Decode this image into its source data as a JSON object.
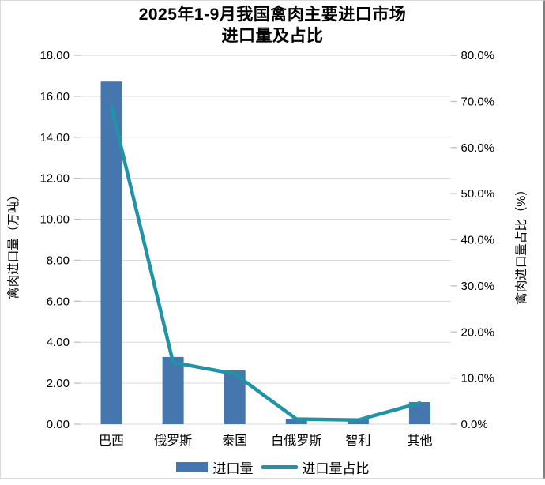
{
  "header": {
    "title_line1": "2025年1-9月我国禽肉主要进口市场",
    "title_line2": "进口量及占比"
  },
  "legend": {
    "items": [
      {
        "label": "进口量",
        "type": "bar"
      },
      {
        "label": "进口量占比",
        "type": "line"
      }
    ]
  },
  "chart_data": {
    "type": "bar+line",
    "title": "2025年1-9月我国禽肉主要进口市场 进口量及占比",
    "categories": [
      "巴西",
      "俄罗斯",
      "泰国",
      "白俄罗斯",
      "智利",
      "其他"
    ],
    "series": [
      {
        "name": "进口量",
        "type": "bar",
        "axis": "left",
        "values": [
          16.72,
          3.28,
          2.62,
          0.27,
          0.25,
          1.08
        ],
        "color": "#4576AD"
      },
      {
        "name": "进口量占比",
        "type": "line",
        "axis": "right",
        "values": [
          68.9,
          13.4,
          10.9,
          1.1,
          0.9,
          4.6
        ],
        "color": "#2193A6"
      }
    ],
    "left_axis": {
      "title": "禽肉进口量（万吨）",
      "min": 0,
      "max": 18,
      "step": 2,
      "tick_labels": [
        "0.00",
        "2.00",
        "4.00",
        "6.00",
        "8.00",
        "10.00",
        "12.00",
        "14.00",
        "16.00",
        "18.00"
      ]
    },
    "right_axis": {
      "title": "禽肉进口量占比（%）",
      "min": 0,
      "max": 80,
      "step": 10,
      "tick_labels": [
        "0.0%",
        "10.0%",
        "20.0%",
        "30.0%",
        "40.0%",
        "50.0%",
        "60.0%",
        "70.0%",
        "80.0%"
      ]
    },
    "grid": true,
    "legend_position": "bottom",
    "colors": {
      "grid": "#D9D9D9",
      "tick": "#BFBFBF",
      "text": "#000000",
      "border": "#D9D9D9",
      "border_right": "#7F7F7F"
    }
  }
}
